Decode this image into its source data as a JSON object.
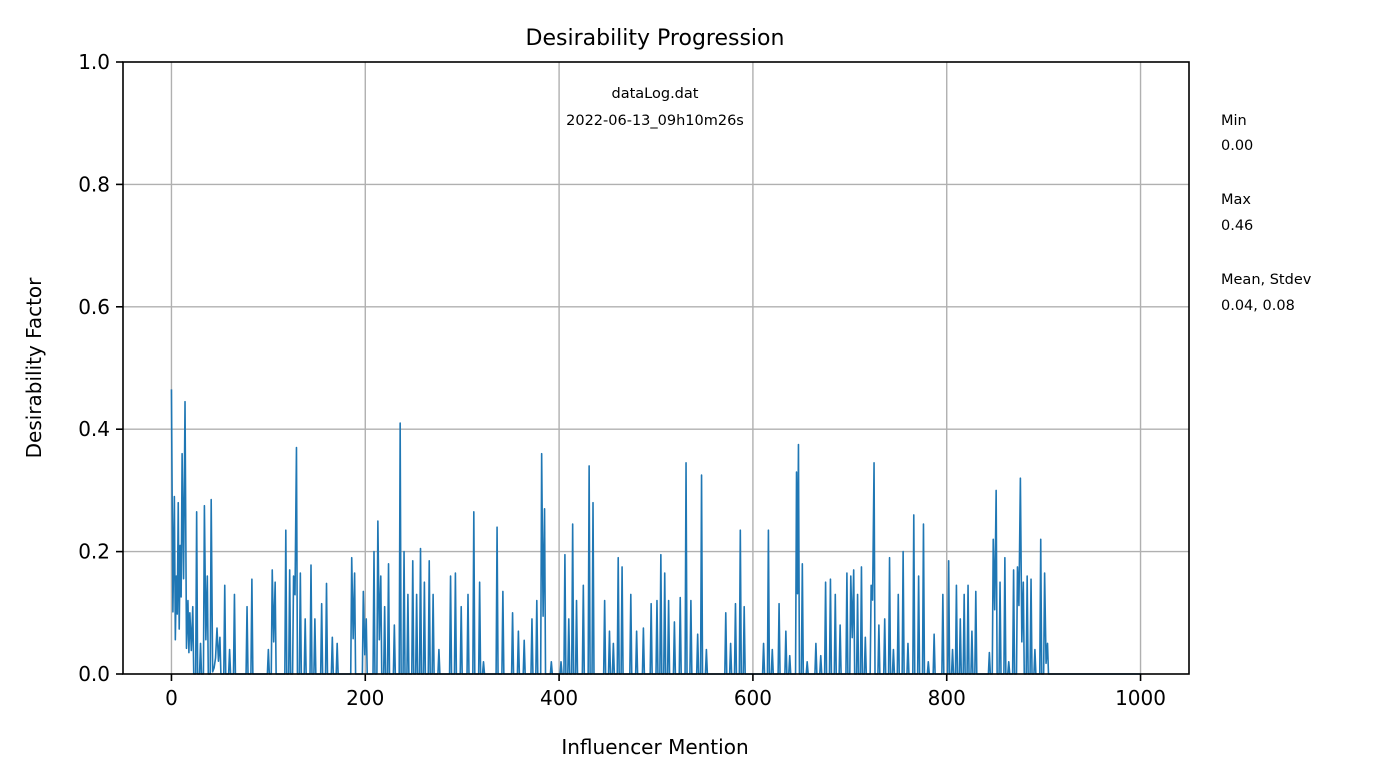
{
  "chart_data": {
    "type": "line",
    "title": "Desirability Progression",
    "xlabel": "Influencer Mention",
    "ylabel": "Desirability Factor",
    "xlim": [
      -50,
      1050
    ],
    "ylim": [
      0.0,
      1.0
    ],
    "xticks": [
      0,
      200,
      400,
      600,
      800,
      1000
    ],
    "xtick_labels": [
      "0",
      "200",
      "400",
      "600",
      "800",
      "1000"
    ],
    "yticks": [
      0.0,
      0.2,
      0.4,
      0.6,
      0.8,
      1.0
    ],
    "ytick_labels": [
      "0.0",
      "0.2",
      "0.4",
      "0.6",
      "0.8",
      "1.0"
    ],
    "grid": true,
    "annotation_lines": [
      "dataLog.dat",
      "2022-06-13_09h10m26s"
    ],
    "stats": {
      "min_label": "Min",
      "min_value": "0.00",
      "max_label": "Max",
      "max_value": "0.46",
      "mean_label": "Mean, Stdev",
      "mean_value": "0.04, 0.08"
    },
    "series": [
      {
        "color": "#1f77b4",
        "x_start": 0,
        "x_step": 1,
        "peaks": [
          [
            0,
            0.465
          ],
          [
            3,
            0.29
          ],
          [
            5,
            0.16
          ],
          [
            7,
            0.28
          ],
          [
            9,
            0.21
          ],
          [
            11,
            0.36
          ],
          [
            14,
            0.445
          ],
          [
            17,
            0.12
          ],
          [
            19,
            0.1
          ],
          [
            22,
            0.11
          ],
          [
            26,
            0.265
          ],
          [
            30,
            0.05
          ],
          [
            34,
            0.275
          ],
          [
            37,
            0.16
          ],
          [
            41,
            0.285
          ],
          [
            44,
            0.01
          ],
          [
            47,
            0.075
          ],
          [
            50,
            0.06
          ],
          [
            55,
            0.145
          ],
          [
            60,
            0.04
          ],
          [
            65,
            0.13
          ],
          [
            78,
            0.11
          ],
          [
            83,
            0.155
          ],
          [
            100,
            0.04
          ],
          [
            104,
            0.17
          ],
          [
            107,
            0.15
          ],
          [
            118,
            0.235
          ],
          [
            122,
            0.17
          ],
          [
            126,
            0.16
          ],
          [
            129,
            0.37
          ],
          [
            133,
            0.165
          ],
          [
            138,
            0.09
          ],
          [
            144,
            0.178
          ],
          [
            148,
            0.09
          ],
          [
            155,
            0.115
          ],
          [
            160,
            0.148
          ],
          [
            166,
            0.06
          ],
          [
            171,
            0.05
          ],
          [
            186,
            0.19
          ],
          [
            189,
            0.165
          ],
          [
            198,
            0.135
          ],
          [
            201,
            0.09
          ],
          [
            209,
            0.2
          ],
          [
            213,
            0.25
          ],
          [
            216,
            0.16
          ],
          [
            220,
            0.11
          ],
          [
            224,
            0.18
          ],
          [
            230,
            0.08
          ],
          [
            236,
            0.41
          ],
          [
            240,
            0.2
          ],
          [
            244,
            0.13
          ],
          [
            249,
            0.185
          ],
          [
            253,
            0.13
          ],
          [
            257,
            0.205
          ],
          [
            261,
            0.15
          ],
          [
            266,
            0.185
          ],
          [
            270,
            0.13
          ],
          [
            276,
            0.04
          ],
          [
            288,
            0.16
          ],
          [
            293,
            0.165
          ],
          [
            299,
            0.11
          ],
          [
            306,
            0.13
          ],
          [
            312,
            0.265
          ],
          [
            318,
            0.15
          ],
          [
            322,
            0.02
          ],
          [
            336,
            0.24
          ],
          [
            342,
            0.135
          ],
          [
            352,
            0.1
          ],
          [
            358,
            0.07
          ],
          [
            364,
            0.055
          ],
          [
            372,
            0.09
          ],
          [
            377,
            0.12
          ],
          [
            382,
            0.36
          ],
          [
            385,
            0.27
          ],
          [
            392,
            0.02
          ],
          [
            402,
            0.02
          ],
          [
            406,
            0.195
          ],
          [
            410,
            0.09
          ],
          [
            414,
            0.245
          ],
          [
            418,
            0.12
          ],
          [
            425,
            0.145
          ],
          [
            431,
            0.34
          ],
          [
            435,
            0.28
          ],
          [
            447,
            0.12
          ],
          [
            452,
            0.07
          ],
          [
            456,
            0.05
          ],
          [
            461,
            0.19
          ],
          [
            465,
            0.175
          ],
          [
            474,
            0.13
          ],
          [
            480,
            0.07
          ],
          [
            487,
            0.075
          ],
          [
            495,
            0.115
          ],
          [
            501,
            0.12
          ],
          [
            505,
            0.195
          ],
          [
            509,
            0.165
          ],
          [
            513,
            0.12
          ],
          [
            519,
            0.085
          ],
          [
            525,
            0.125
          ],
          [
            531,
            0.345
          ],
          [
            536,
            0.12
          ],
          [
            543,
            0.065
          ],
          [
            547,
            0.325
          ],
          [
            552,
            0.04
          ],
          [
            572,
            0.1
          ],
          [
            577,
            0.05
          ],
          [
            582,
            0.115
          ],
          [
            587,
            0.235
          ],
          [
            591,
            0.11
          ],
          [
            611,
            0.05
          ],
          [
            616,
            0.235
          ],
          [
            620,
            0.04
          ],
          [
            627,
            0.115
          ],
          [
            634,
            0.07
          ],
          [
            638,
            0.03
          ],
          [
            645,
            0.33
          ],
          [
            647,
            0.375
          ],
          [
            651,
            0.18
          ],
          [
            656,
            0.02
          ],
          [
            665,
            0.05
          ],
          [
            670,
            0.03
          ],
          [
            675,
            0.15
          ],
          [
            680,
            0.155
          ],
          [
            685,
            0.13
          ],
          [
            690,
            0.08
          ],
          [
            697,
            0.165
          ],
          [
            701,
            0.16
          ],
          [
            704,
            0.17
          ],
          [
            708,
            0.13
          ],
          [
            712,
            0.175
          ],
          [
            716,
            0.06
          ],
          [
            722,
            0.145
          ],
          [
            725,
            0.345
          ],
          [
            730,
            0.08
          ],
          [
            736,
            0.09
          ],
          [
            741,
            0.19
          ],
          [
            745,
            0.04
          ],
          [
            750,
            0.13
          ],
          [
            755,
            0.2
          ],
          [
            760,
            0.05
          ],
          [
            766,
            0.26
          ],
          [
            771,
            0.16
          ],
          [
            776,
            0.245
          ],
          [
            781,
            0.02
          ],
          [
            787,
            0.065
          ],
          [
            796,
            0.13
          ],
          [
            802,
            0.185
          ],
          [
            806,
            0.04
          ],
          [
            810,
            0.145
          ],
          [
            814,
            0.09
          ],
          [
            818,
            0.13
          ],
          [
            822,
            0.145
          ],
          [
            826,
            0.07
          ],
          [
            830,
            0.135
          ],
          [
            844,
            0.035
          ],
          [
            848,
            0.22
          ],
          [
            851,
            0.3
          ],
          [
            855,
            0.15
          ],
          [
            860,
            0.19
          ],
          [
            864,
            0.02
          ],
          [
            869,
            0.17
          ],
          [
            873,
            0.175
          ],
          [
            876,
            0.32
          ],
          [
            879,
            0.15
          ],
          [
            883,
            0.16
          ],
          [
            887,
            0.155
          ],
          [
            891,
            0.04
          ],
          [
            897,
            0.22
          ],
          [
            901,
            0.165
          ],
          [
            904,
            0.05
          ]
        ],
        "nonzero_until": 907,
        "x_end": 1000
      }
    ]
  }
}
